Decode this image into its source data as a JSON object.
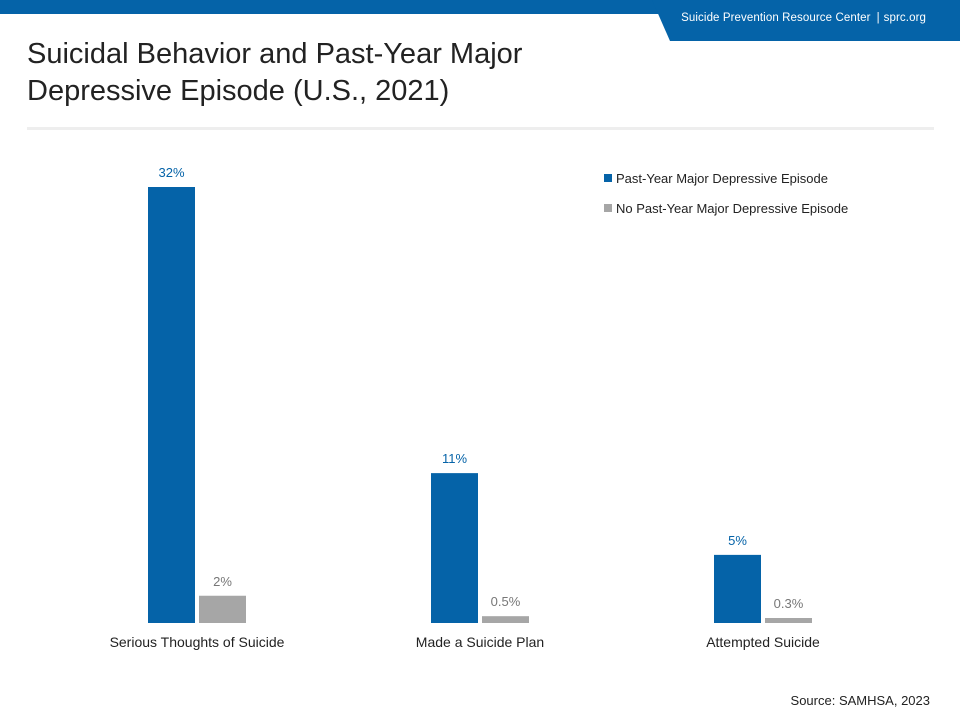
{
  "header": {
    "org_name": "Suicide Prevention Resource Center",
    "separator": "|",
    "site": "sprc.org",
    "brand_color": "#0563a8"
  },
  "title": "Suicidal Behavior and Past-Year Major Depressive Episode (U.S., 2021)",
  "source": "Source: SAMHSA, 2023",
  "chart_data": {
    "type": "bar",
    "categories": [
      "Serious Thoughts of Suicide",
      "Made a Suicide Plan",
      "Attempted Suicide"
    ],
    "series": [
      {
        "name": "Past-Year Major Depressive Episode",
        "color": "#0563a8",
        "label_color": "#0563a8",
        "values": [
          32,
          11,
          5
        ],
        "labels": [
          "32%",
          "11%",
          "5%"
        ]
      },
      {
        "name": "No Past-Year Major Depressive Episode",
        "color": "#a6a6a6",
        "label_color": "#777777",
        "values": [
          2,
          0.5,
          0.3
        ],
        "labels": [
          "2%",
          "0.5%",
          "0.3%"
        ]
      }
    ],
    "title": "Suicidal Behavior and Past-Year Major Depressive Episode (U.S., 2021)",
    "xlabel": "",
    "ylabel": "",
    "ylim": [
      0,
      32
    ],
    "grid": false,
    "legend_position": "top-right"
  }
}
